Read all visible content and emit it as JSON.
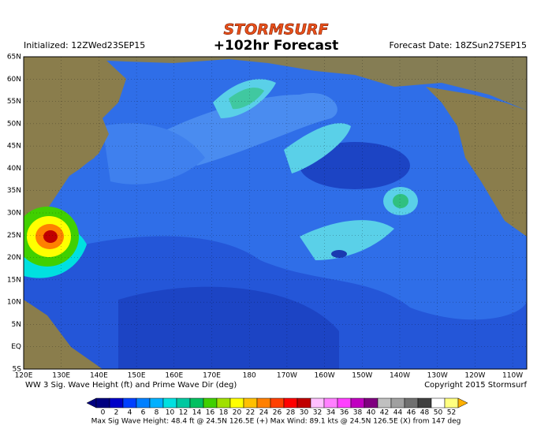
{
  "header": {
    "logo": "STORMSURF",
    "title": "+102hr Forecast",
    "initialized": "Initialized: 12ZWed23SEP15",
    "forecast_date": "Forecast Date: 18ZSun27SEP15"
  },
  "map": {
    "lat_labels": [
      "65N",
      "60N",
      "55N",
      "50N",
      "45N",
      "40N",
      "35N",
      "30N",
      "25N",
      "20N",
      "15N",
      "10N",
      "5N",
      "EQ",
      "5S"
    ],
    "lon_labels": [
      "120E",
      "130E",
      "140E",
      "150E",
      "160E",
      "170E",
      "180",
      "170W",
      "160W",
      "150W",
      "140W",
      "130W",
      "120W",
      "110W"
    ]
  },
  "footer": {
    "caption": "WW 3 Sig. Wave Height (ft) and Prime Wave Dir (deg)",
    "copyright": "Copyright 2015 Stormsurf"
  },
  "colorbar": {
    "ticks": [
      0,
      2,
      4,
      6,
      8,
      10,
      12,
      14,
      16,
      18,
      20,
      22,
      24,
      26,
      28,
      30,
      32,
      34,
      36,
      38,
      40,
      42,
      44,
      46,
      48,
      50,
      52
    ],
    "colors": [
      "#000080",
      "#0000c8",
      "#0040ff",
      "#0080ff",
      "#00b0ff",
      "#00e0e0",
      "#00c8a0",
      "#00c060",
      "#40d000",
      "#a0e000",
      "#ffff00",
      "#ffc000",
      "#ff8000",
      "#ff4000",
      "#ff0000",
      "#c00000",
      "#ffc0ff",
      "#ff80ff",
      "#ff40ff",
      "#c000c0",
      "#800080",
      "#c0c0c0",
      "#a0a0a0",
      "#707070",
      "#404040",
      "#ffffff",
      "#ffff80"
    ]
  },
  "stats": "Max Sig Wave Height: 48.4 ft @ 24.5N 126.5E (+)   Max Wind: 89.1 kts @ 24.5N 126.5E (X) from 147 deg"
}
